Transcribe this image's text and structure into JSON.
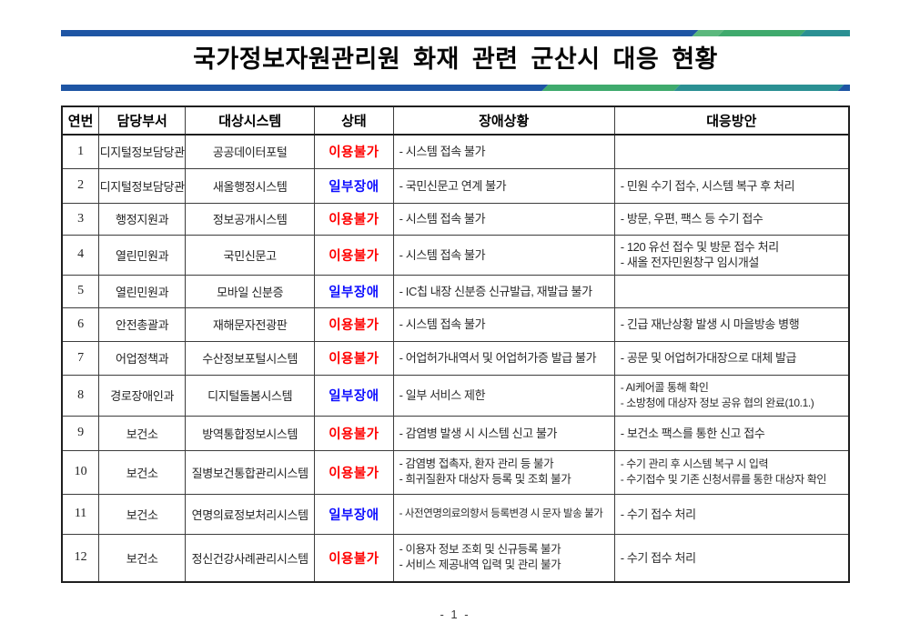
{
  "page": {
    "title": "국가정보자원관리원 화재 관련 군산시 대응 현황",
    "page_number": "- 1 -"
  },
  "accent_colors": {
    "bar_blue": "#1e55a4",
    "bar_green_light": "#5bb87d",
    "bar_green": "#3faa6d",
    "bar_teal": "#2b9093"
  },
  "status_styles": {
    "unavailable": "#ff0000",
    "partial": "#0f0fff"
  },
  "table": {
    "headers": [
      "연번",
      "담당부서",
      "대상시스템",
      "상태",
      "장애상황",
      "대응방안"
    ],
    "rows": [
      {
        "no": "1",
        "dept": "디지털정보담당관",
        "system": "공공데이터포털",
        "status": "이용불가",
        "status_type": "unavailable",
        "issues": [
          "- 시스템 접속 불가"
        ],
        "responses": []
      },
      {
        "no": "2",
        "dept": "디지털정보담당관",
        "system": "새올행정시스템",
        "status": "일부장애",
        "status_type": "partial",
        "issues": [
          "- 국민신문고 연계 불가"
        ],
        "responses": [
          "- 민원 수기 접수, 시스템 복구 후 처리"
        ]
      },
      {
        "no": "3",
        "dept": "행정지원과",
        "system": "정보공개시스템",
        "status": "이용불가",
        "status_type": "unavailable",
        "issues": [
          "- 시스템 접속 불가"
        ],
        "responses": [
          "- 방문, 우편, 팩스 등 수기 접수"
        ]
      },
      {
        "no": "4",
        "dept": "열린민원과",
        "system": "국민신문고",
        "status": "이용불가",
        "status_type": "unavailable",
        "issues": [
          "- 시스템 접속 불가"
        ],
        "responses": [
          "- 120 유선 접수 및 방문 접수 처리",
          "-  새올 전자민원창구 임시개설"
        ]
      },
      {
        "no": "5",
        "dept": "열린민원과",
        "system": "모바일 신분증",
        "status": "일부장애",
        "status_type": "partial",
        "issues": [
          "- IC칩 내장 신분증 신규발급, 재발급 불가"
        ],
        "responses": []
      },
      {
        "no": "6",
        "dept": "안전총괄과",
        "system": "재해문자전광판",
        "status": "이용불가",
        "status_type": "unavailable",
        "issues": [
          "- 시스템 접속 불가"
        ],
        "responses": [
          "- 긴급 재난상황 발생 시 마을방송 병행"
        ]
      },
      {
        "no": "7",
        "dept": "어업정책과",
        "system": "수산정보포털시스템",
        "status": "이용불가",
        "status_type": "unavailable",
        "issues": [
          "- 어업허가내역서 및 어업허가증 발급 불가"
        ],
        "responses": [
          "- 공문 및 어업허가대장으로 대체 발급"
        ]
      },
      {
        "no": "8",
        "dept": "경로장애인과",
        "system": "디지털돌봄시스템",
        "status": "일부장애",
        "status_type": "partial",
        "issues": [
          "- 일부 서비스 제한"
        ],
        "responses": [
          "- AI케어콜 통해 확인",
          "- 소방청에 대상자 정보 공유 협의 완료(10.1.)"
        ]
      },
      {
        "no": "9",
        "dept": "보건소",
        "system": "방역통합정보시스템",
        "status": "이용불가",
        "status_type": "unavailable",
        "issues": [
          "- 감염병 발생 시 시스템 신고 불가"
        ],
        "responses": [
          "- 보건소 팩스를 통한 신고 접수"
        ]
      },
      {
        "no": "10",
        "dept": "보건소",
        "system": "질병보건통합관리시스템",
        "status": "이용불가",
        "status_type": "unavailable",
        "issues": [
          "- 감염병 접촉자, 환자 관리 등 불가",
          "- 희귀질환자 대상자 등록 및 조회 불가"
        ],
        "responses": [
          "- 수기 관리 후 시스템 복구 시 입력",
          "- 수기접수 및 기존 신청서류를 통한 대상자 확인"
        ]
      },
      {
        "no": "11",
        "dept": "보건소",
        "system": "연명의료정보처리시스템",
        "status": "일부장애",
        "status_type": "partial",
        "issues": [
          "- 사전연명의료의향서 등록변경 시 문자 발송 불가"
        ],
        "responses": [
          "- 수기 접수 처리"
        ]
      },
      {
        "no": "12",
        "dept": "보건소",
        "system": "정신건강사례관리시스템",
        "status": "이용불가",
        "status_type": "unavailable",
        "issues": [
          "- 이용자 정보 조회 및 신규등록 불가",
          "- 서비스 제공내역 입력 및 관리 불가"
        ],
        "responses": [
          "- 수기 접수 처리"
        ]
      }
    ]
  }
}
